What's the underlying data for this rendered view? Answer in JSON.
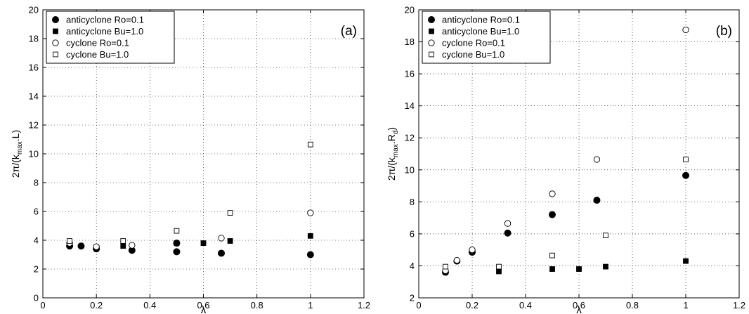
{
  "chart_data": [
    {
      "type": "scatter",
      "panel_label": "(a)",
      "title": "",
      "xlabel": "λ",
      "ylabel": "2π/(k_max.L)",
      "ylabel_parts": {
        "prefix": "2π/(k",
        "sub1": "max",
        "mid": ".L",
        "sub2": "",
        "suffix": ")"
      },
      "xlim": [
        0,
        1.2
      ],
      "ylim": [
        0,
        20
      ],
      "xticks": [
        0,
        0.2,
        0.4,
        0.6,
        0.8,
        1,
        1.2
      ],
      "xtick_labels": [
        "0",
        "0.2",
        "0.4",
        "0.6",
        "0.8",
        "1",
        "1.2"
      ],
      "yticks": [
        0,
        2,
        4,
        6,
        8,
        10,
        12,
        14,
        16,
        18,
        20
      ],
      "ytick_labels": [
        "0",
        "2",
        "4",
        "6",
        "8",
        "10",
        "12",
        "14",
        "16",
        "18",
        "20"
      ],
      "grid": true,
      "legend_position": "top-left",
      "series": [
        {
          "name": "anticyclone Ro=0.1",
          "marker": "filled-circle",
          "x": [
            0.1,
            0.143,
            0.2,
            0.333,
            0.5,
            0.5,
            0.667,
            1.0
          ],
          "y": [
            3.6,
            3.6,
            3.4,
            3.3,
            3.8,
            3.2,
            3.1,
            3.0
          ]
        },
        {
          "name": "anticyclone Bu=1.0",
          "marker": "filled-square",
          "x": [
            0.1,
            0.2,
            0.3,
            0.5,
            0.6,
            0.7,
            1.0
          ],
          "y": [
            3.7,
            3.5,
            3.6,
            3.8,
            3.8,
            3.95,
            4.3
          ]
        },
        {
          "name": "cyclone Ro=0.1",
          "marker": "open-circle",
          "x": [
            0.1,
            0.2,
            0.333,
            0.667,
            1.0
          ],
          "y": [
            3.8,
            3.55,
            3.65,
            4.15,
            5.9
          ]
        },
        {
          "name": "cyclone Bu=1.0",
          "marker": "open-square",
          "x": [
            0.1,
            0.3,
            0.5,
            0.7,
            1.0
          ],
          "y": [
            3.95,
            3.95,
            4.65,
            5.9,
            10.65
          ]
        }
      ]
    },
    {
      "type": "scatter",
      "panel_label": "(b)",
      "title": "",
      "xlabel": "λ",
      "ylabel": "2π/(k_max.R_d)",
      "ylabel_parts": {
        "prefix": "2π/(k",
        "sub1": "max",
        "mid": ".R",
        "sub2": "d",
        "suffix": ")"
      },
      "xlim": [
        0,
        1.2
      ],
      "ylim": [
        2,
        20
      ],
      "xticks": [
        0,
        0.2,
        0.4,
        0.6,
        0.8,
        1,
        1.2
      ],
      "xtick_labels": [
        "0",
        "0.2",
        "0.4",
        "0.6",
        "0.8",
        "1",
        "1.2"
      ],
      "yticks": [
        2,
        4,
        6,
        8,
        10,
        12,
        14,
        16,
        18,
        20
      ],
      "ytick_labels": [
        "2",
        "4",
        "6",
        "8",
        "10",
        "12",
        "14",
        "16",
        "18",
        "20"
      ],
      "grid": true,
      "legend_position": "top-left",
      "series": [
        {
          "name": "anticyclone Ro=0.1",
          "marker": "filled-circle",
          "x": [
            0.1,
            0.143,
            0.2,
            0.333,
            0.5,
            0.667,
            1.0
          ],
          "y": [
            3.6,
            4.3,
            4.85,
            6.05,
            7.2,
            8.1,
            9.65
          ]
        },
        {
          "name": "anticyclone Bu=1.0",
          "marker": "filled-square",
          "x": [
            0.1,
            0.3,
            0.5,
            0.6,
            0.7,
            1.0
          ],
          "y": [
            3.7,
            3.65,
            3.8,
            3.8,
            3.95,
            4.3
          ]
        },
        {
          "name": "cyclone Ro=0.1",
          "marker": "open-circle",
          "x": [
            0.1,
            0.143,
            0.2,
            0.333,
            0.5,
            0.667,
            1.0
          ],
          "y": [
            3.7,
            4.35,
            5.0,
            6.65,
            8.5,
            10.65,
            18.75
          ]
        },
        {
          "name": "cyclone Bu=1.0",
          "marker": "open-square",
          "x": [
            0.1,
            0.3,
            0.5,
            0.7,
            1.0
          ],
          "y": [
            3.95,
            3.95,
            4.65,
            5.9,
            10.65
          ]
        }
      ]
    }
  ]
}
